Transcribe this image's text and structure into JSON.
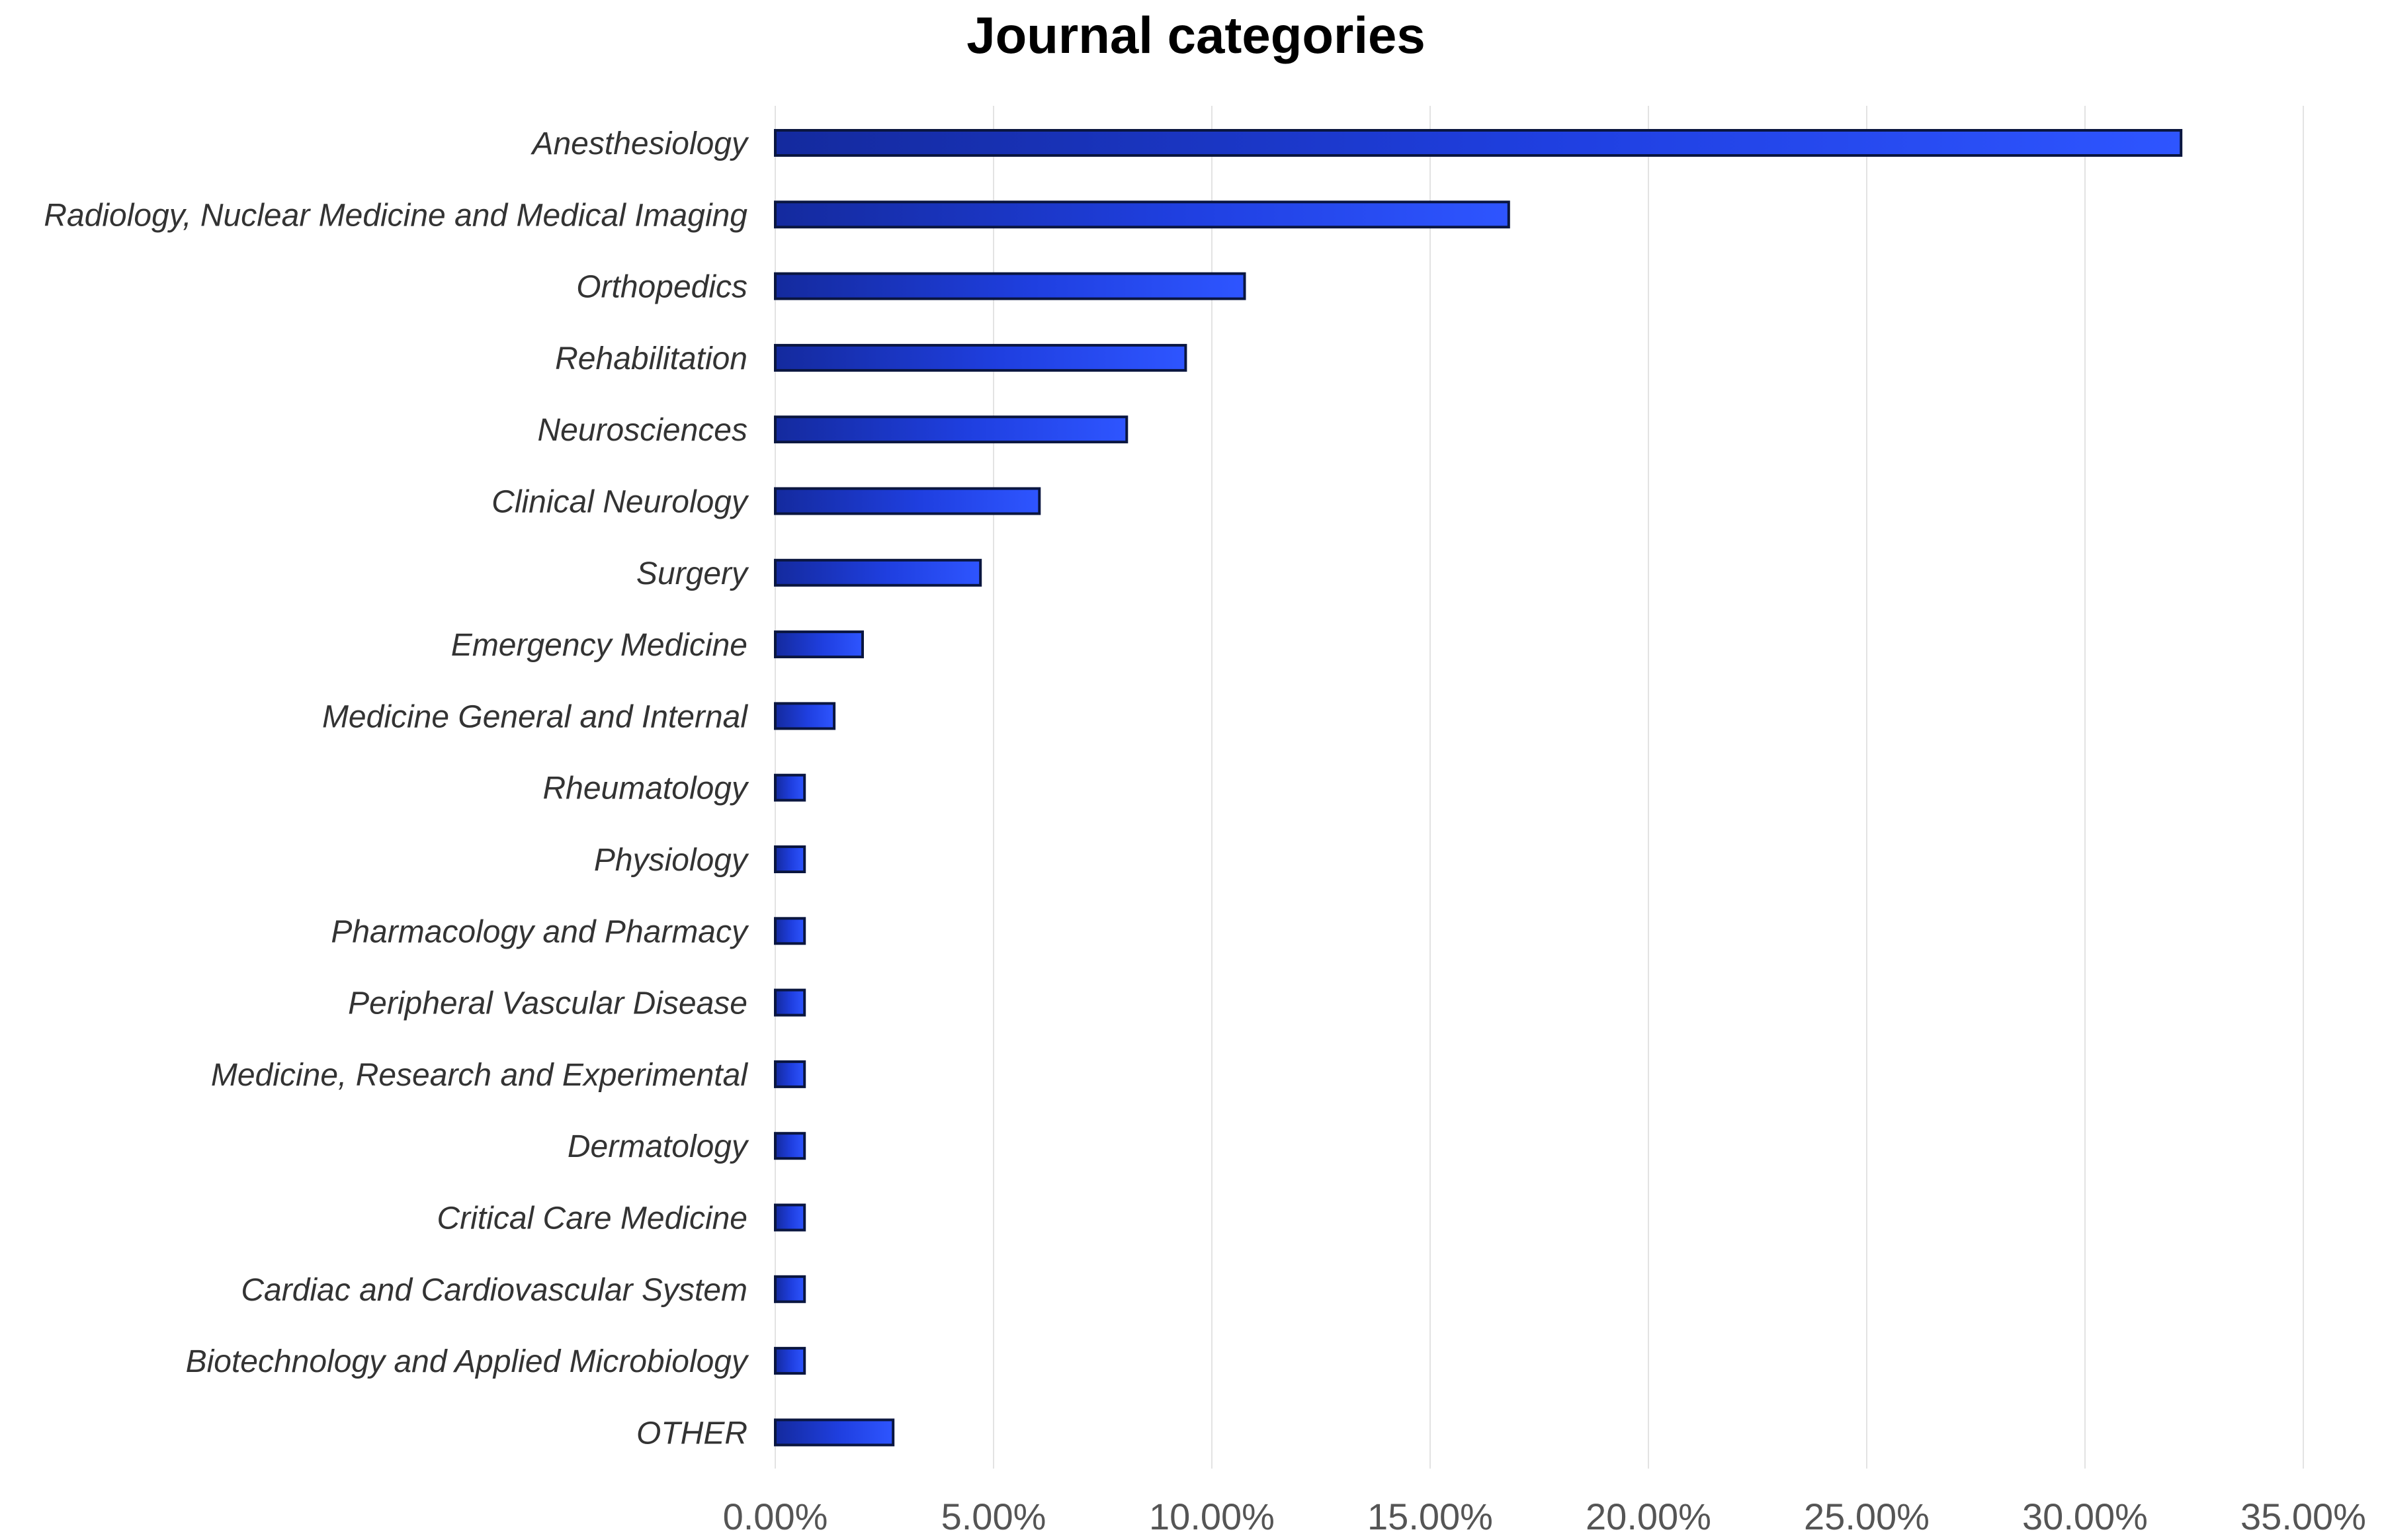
{
  "chart_data": {
    "type": "bar",
    "orientation": "horizontal",
    "title": "Journal categories",
    "xlabel": "",
    "ylabel": "",
    "xlim": [
      0,
      35
    ],
    "x_ticks": [
      "0.00%",
      "5.00%",
      "10.00%",
      "15.00%",
      "20.00%",
      "25.00%",
      "30.00%",
      "35.00%"
    ],
    "grid": "vertical",
    "legend": "none",
    "bar_color": "#1f3fe0",
    "categories": [
      "Anesthesiology",
      "Radiology, Nuclear Medicine and Medical Imaging",
      "Orthopedics",
      "Rehabilitation",
      "Neurosciences",
      "Clinical Neurology",
      "Surgery",
      "Emergency Medicine",
      "Medicine General and Internal",
      "Rheumatology",
      "Physiology",
      "Pharmacology and Pharmacy",
      "Peripheral Vascular Disease",
      "Medicine, Research and Experimental",
      "Dermatology",
      "Critical Care Medicine",
      "Cardiac and Cardiovascular System",
      "Biotechnology and Applied Microbiology",
      "OTHER"
    ],
    "values": [
      32.2,
      16.8,
      10.75,
      9.4,
      8.05,
      6.05,
      4.7,
      2.0,
      1.35,
      0.67,
      0.67,
      0.67,
      0.67,
      0.67,
      0.67,
      0.67,
      0.67,
      0.67,
      2.7
    ]
  }
}
